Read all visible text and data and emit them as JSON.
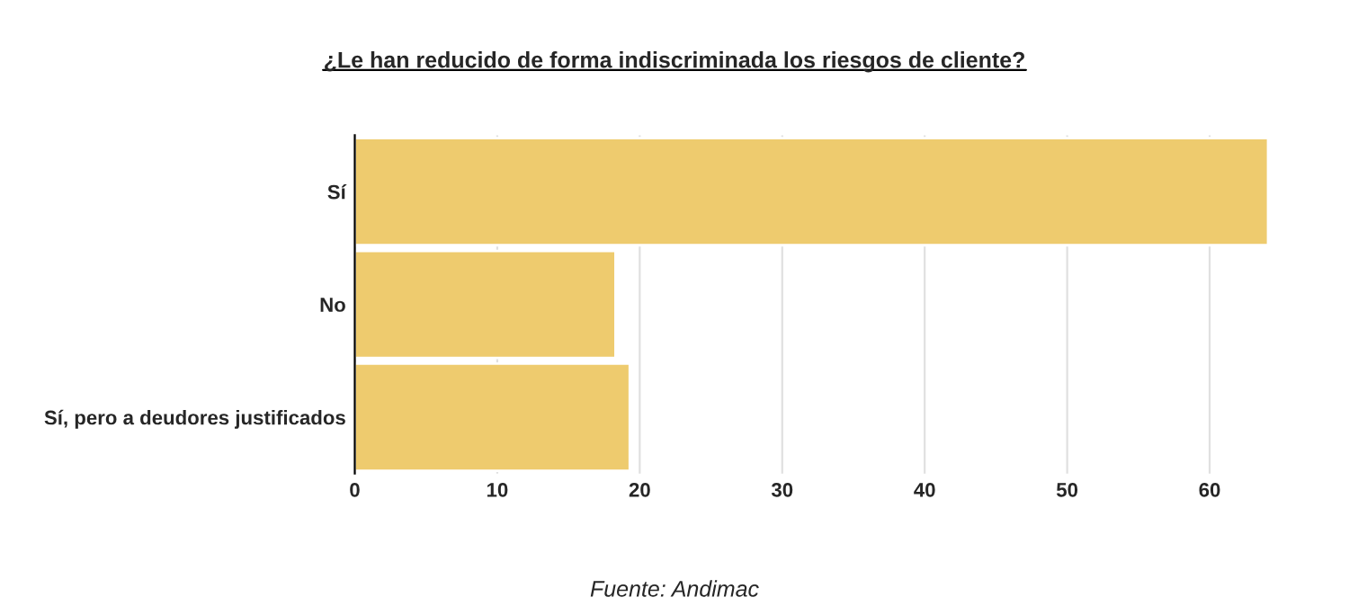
{
  "chart_data": {
    "type": "bar",
    "orientation": "horizontal",
    "title": "¿Le han reducido de forma indiscriminada los riesgos de cliente?",
    "categories": [
      "Sí",
      "No",
      "Sí, pero a deudores justificados"
    ],
    "values": [
      64.1,
      18.3,
      19.3
    ],
    "color": "#eecb6e",
    "xlim": [
      0,
      64.1
    ],
    "xticks": [
      0,
      10,
      20,
      30,
      40,
      50,
      60
    ],
    "grid": "x",
    "annotations": [
      "Fuente: Andimac"
    ]
  }
}
